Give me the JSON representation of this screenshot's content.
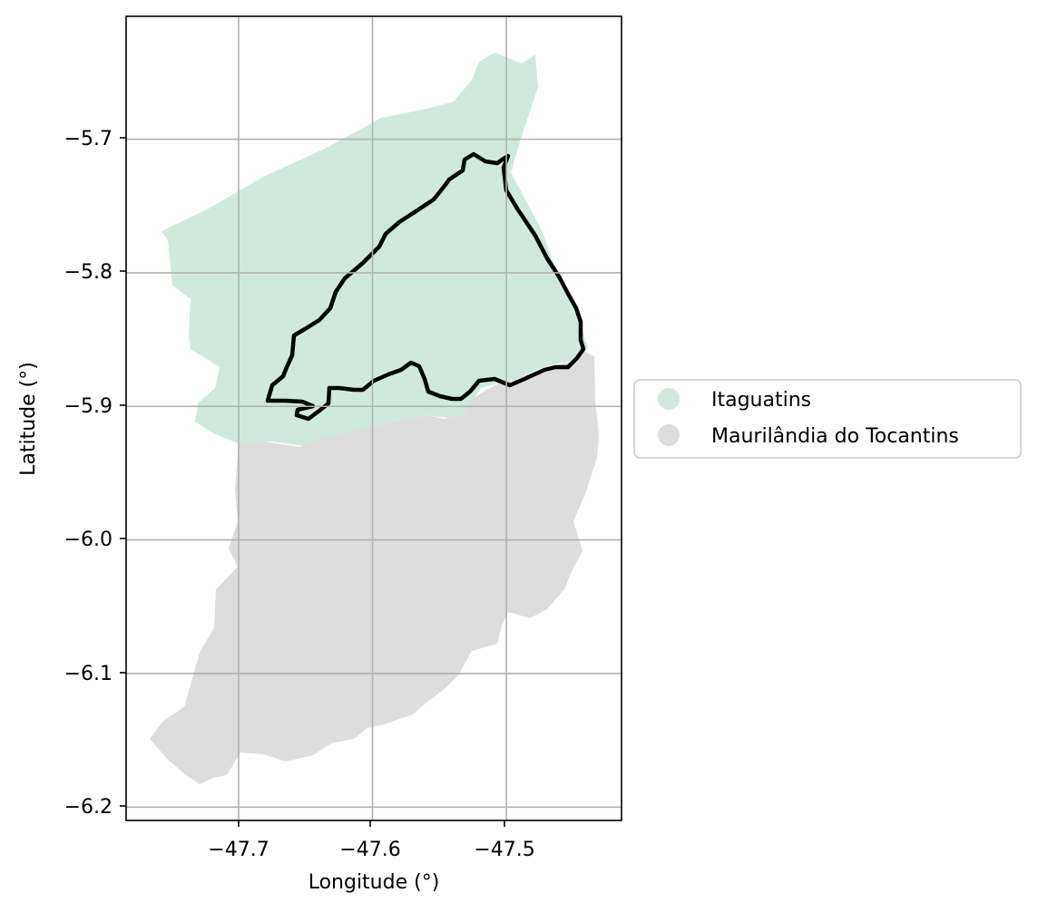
{
  "chart_data": {
    "type": "map",
    "xlabel": "Longitude (°)",
    "ylabel": "Latitude (°)",
    "xlim": [
      -47.784,
      -47.414
    ],
    "ylim": [
      -6.21,
      -5.608
    ],
    "xticks": [
      -47.7,
      -47.6,
      -47.5
    ],
    "xtick_labels": [
      "−47.7",
      "−47.6",
      "−47.5"
    ],
    "yticks": [
      -5.7,
      -5.8,
      -5.9,
      -6.0,
      -6.1,
      -6.2
    ],
    "ytick_labels": [
      "−5.7",
      "−5.8",
      "−5.9",
      "−6.0",
      "−6.1",
      "−6.2"
    ],
    "grid": true,
    "legend_position": "right",
    "regions": [
      {
        "name": "Itaguatins",
        "color": "#cfeadd"
      },
      {
        "name": "Maurilândia do Tocantins",
        "color": "#dddddd"
      }
    ],
    "outline": {
      "color": "#000000"
    }
  }
}
